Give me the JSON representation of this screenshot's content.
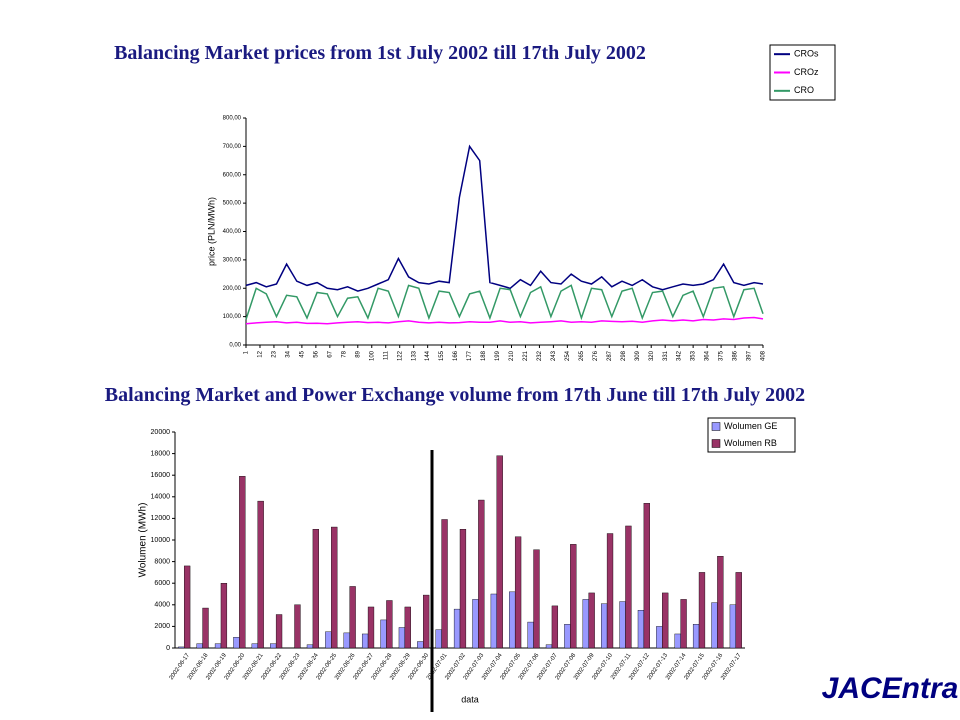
{
  "chart_data": [
    {
      "type": "line",
      "title": "Balancing Market prices from 1st July 2002 till 17th July 2002",
      "ylabel": "price (PLN/MWh)",
      "x": [
        1,
        9,
        17,
        25,
        33,
        41,
        49,
        57,
        65,
        73,
        81,
        89,
        97,
        105,
        113,
        121,
        129,
        137,
        145,
        153,
        161,
        169,
        177,
        185,
        193,
        201,
        209,
        217,
        225,
        233,
        241,
        249,
        257,
        265,
        273,
        281,
        289,
        297,
        305,
        313,
        321,
        329,
        337,
        345,
        353,
        361,
        369,
        377,
        385,
        393,
        401,
        408
      ],
      "xlim": [
        1,
        408
      ],
      "xticks": [
        1,
        12,
        23,
        34,
        45,
        56,
        67,
        78,
        89,
        100,
        111,
        122,
        133,
        144,
        155,
        166,
        177,
        188,
        199,
        210,
        221,
        232,
        243,
        254,
        265,
        276,
        287,
        298,
        309,
        320,
        331,
        342,
        353,
        364,
        375,
        386,
        397,
        408
      ],
      "ylim": [
        0,
        800
      ],
      "yticks": [
        {
          "value": 0,
          "label": "0,00"
        },
        {
          "value": 100,
          "label": "100,00"
        },
        {
          "value": 200,
          "label": "200,00"
        },
        {
          "value": 300,
          "label": "300,00"
        },
        {
          "value": 400,
          "label": "400,00"
        },
        {
          "value": 500,
          "label": "500,00"
        },
        {
          "value": 600,
          "label": "600,00"
        },
        {
          "value": 700,
          "label": "700,00"
        },
        {
          "value": 800,
          "label": "800,00"
        }
      ],
      "series": [
        {
          "name": "CROs",
          "color": "#000080",
          "values": [
            210,
            220,
            205,
            215,
            285,
            225,
            210,
            220,
            200,
            195,
            205,
            190,
            200,
            215,
            230,
            305,
            240,
            220,
            215,
            225,
            220,
            520,
            700,
            650,
            220,
            210,
            200,
            230,
            210,
            260,
            220,
            215,
            250,
            225,
            215,
            240,
            205,
            225,
            210,
            230,
            205,
            195,
            205,
            215,
            210,
            215,
            230,
            285,
            220,
            210,
            220,
            215
          ]
        },
        {
          "name": "CROz",
          "color": "#ff00ff",
          "values": [
            75,
            78,
            80,
            82,
            78,
            80,
            76,
            77,
            75,
            78,
            80,
            82,
            79,
            80,
            78,
            82,
            85,
            80,
            78,
            80,
            78,
            79,
            82,
            80,
            80,
            85,
            80,
            82,
            78,
            80,
            82,
            85,
            80,
            82,
            80,
            85,
            83,
            82,
            84,
            80,
            85,
            88,
            85,
            88,
            85,
            90,
            88,
            92,
            90,
            95,
            97,
            92
          ]
        },
        {
          "name": "CRO",
          "color": "#339966",
          "values": [
            90,
            200,
            180,
            100,
            175,
            170,
            95,
            185,
            180,
            100,
            165,
            170,
            95,
            200,
            190,
            100,
            210,
            200,
            95,
            190,
            185,
            100,
            180,
            190,
            95,
            200,
            195,
            100,
            185,
            205,
            100,
            190,
            210,
            95,
            200,
            195,
            100,
            190,
            200,
            95,
            185,
            190,
            100,
            175,
            190,
            100,
            200,
            205,
            100,
            195,
            200,
            110
          ]
        }
      ]
    },
    {
      "type": "bar",
      "title": "Balancing Market and Power Exchange volume from 17th June till 17th July 2002",
      "xlabel": "data",
      "ylabel": "Wolumen (MWh)",
      "categories": [
        "2002-06-17",
        "2002-06-18",
        "2002-06-19",
        "2002-06-20",
        "2002-06-21",
        "2002-06-22",
        "2002-06-23",
        "2002-06-24",
        "2002-06-25",
        "2002-06-26",
        "2002-06-27",
        "2002-06-28",
        "2002-06-29",
        "2002-06-30",
        "2002-07-01",
        "2002-07-02",
        "2002-07-03",
        "2002-07-04",
        "2002-07-05",
        "2002-07-06",
        "2002-07-07",
        "2002-07-08",
        "2002-07-09",
        "2002-07-10",
        "2002-07-11",
        "2002-07-12",
        "2002-07-13",
        "2002-07-14",
        "2002-07-15",
        "2002-07-16",
        "2002-07-17"
      ],
      "ylim": [
        0,
        20000
      ],
      "yticks": [
        0,
        2000,
        4000,
        6000,
        8000,
        10000,
        12000,
        14000,
        16000,
        18000,
        20000
      ],
      "series": [
        {
          "name": "Wolumen GE",
          "color": "#9999ff",
          "values": [
            100,
            400,
            400,
            1000,
            400,
            400,
            0,
            300,
            1500,
            1400,
            1300,
            2600,
            1900,
            600,
            1700,
            3600,
            4500,
            5000,
            5200,
            2400,
            300,
            2200,
            4500,
            4100,
            4300,
            3500,
            2000,
            1300,
            2200,
            4200,
            4000
          ]
        },
        {
          "name": "Wolumen RB",
          "color": "#993366",
          "values": [
            7600,
            3700,
            6000,
            15900,
            13600,
            3100,
            4000,
            11000,
            11200,
            5700,
            3800,
            4400,
            3800,
            4900,
            11900,
            11000,
            13700,
            17800,
            10300,
            9100,
            3900,
            9600,
            5100,
            10600,
            11300,
            13400,
            5100,
            4500,
            7000,
            8500,
            7000
          ]
        }
      ]
    }
  ],
  "logo": "JACEntra"
}
